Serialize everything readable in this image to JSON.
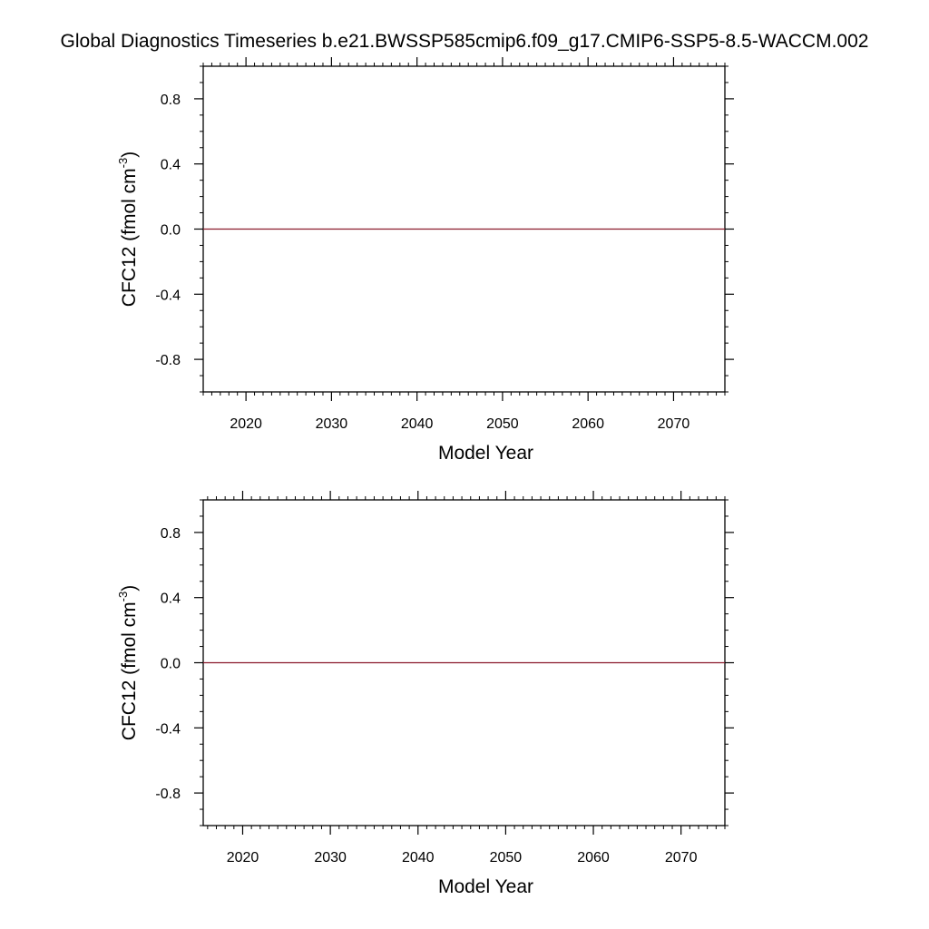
{
  "title": "Global Diagnostics Timeseries b.e21.BWSSP585cmip6.f09_g17.CMIP6-SSP5-8.5-WACCM.002",
  "chart_data": [
    {
      "type": "line",
      "xlabel": "Model Year",
      "ylabel": "CFC12 (fmol cm",
      "ylabel_sup": "-3",
      "ylabel_close": ")",
      "xlim": [
        2015,
        2076
      ],
      "ylim": [
        -1.0,
        1.0
      ],
      "xticks": [
        "2020",
        "2030",
        "2040",
        "2050",
        "2060",
        "2070"
      ],
      "yticks": [
        "0.8",
        "0.4",
        "0.0",
        "-0.4",
        "-0.8"
      ],
      "grid": false,
      "series": [
        {
          "color": "#8b1a2b",
          "x": [
            2015,
            2076
          ],
          "y": [
            0.0,
            0.0
          ]
        }
      ]
    },
    {
      "type": "line",
      "xlabel": "Model Year",
      "ylabel": "CFC12 (fmol cm",
      "ylabel_sup": "-3",
      "ylabel_close": ")",
      "xlim": [
        2015.5,
        2075.0
      ],
      "ylim": [
        -1.0,
        1.0
      ],
      "xticks": [
        "2020",
        "2030",
        "2040",
        "2050",
        "2060",
        "2070"
      ],
      "yticks": [
        "0.8",
        "0.4",
        "0.0",
        "-0.4",
        "-0.8"
      ],
      "grid": false,
      "series": [
        {
          "color": "#8b1a2b",
          "x": [
            2015.5,
            2075.0
          ],
          "y": [
            0.0,
            0.0
          ]
        }
      ]
    }
  ]
}
